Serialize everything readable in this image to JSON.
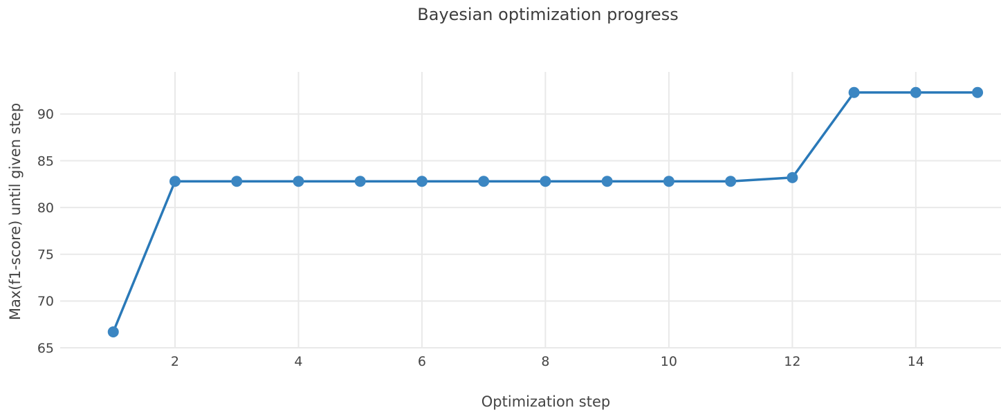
{
  "chart": {
    "title": "Bayesian optimization progress",
    "xlabel": "Optimization step",
    "ylabel": "Max(f1-score) until given step"
  },
  "chart_data": {
    "type": "line",
    "title": "Bayesian optimization progress",
    "xlabel": "Optimization step",
    "ylabel": "Max(f1-score) until given step",
    "x": [
      1,
      2,
      3,
      4,
      5,
      6,
      7,
      8,
      9,
      10,
      11,
      12,
      13,
      14,
      15
    ],
    "y": [
      66.7,
      82.8,
      82.8,
      82.8,
      82.8,
      82.8,
      82.8,
      82.8,
      82.8,
      82.8,
      82.8,
      83.2,
      92.3,
      92.3,
      92.3
    ],
    "x_ticks": [
      2,
      4,
      6,
      8,
      10,
      12,
      14
    ],
    "y_ticks": [
      65,
      70,
      75,
      80,
      85,
      90
    ],
    "x_range": [
      0.14,
      15.38
    ],
    "y_range": [
      65,
      94.5
    ],
    "grid": true,
    "legend_position": "none",
    "line_color": "#2a79b8",
    "marker_color": "#3b86c2",
    "grid_color": "#e9e9e9",
    "text_color": "#444444",
    "background_color": "#ffffff"
  }
}
